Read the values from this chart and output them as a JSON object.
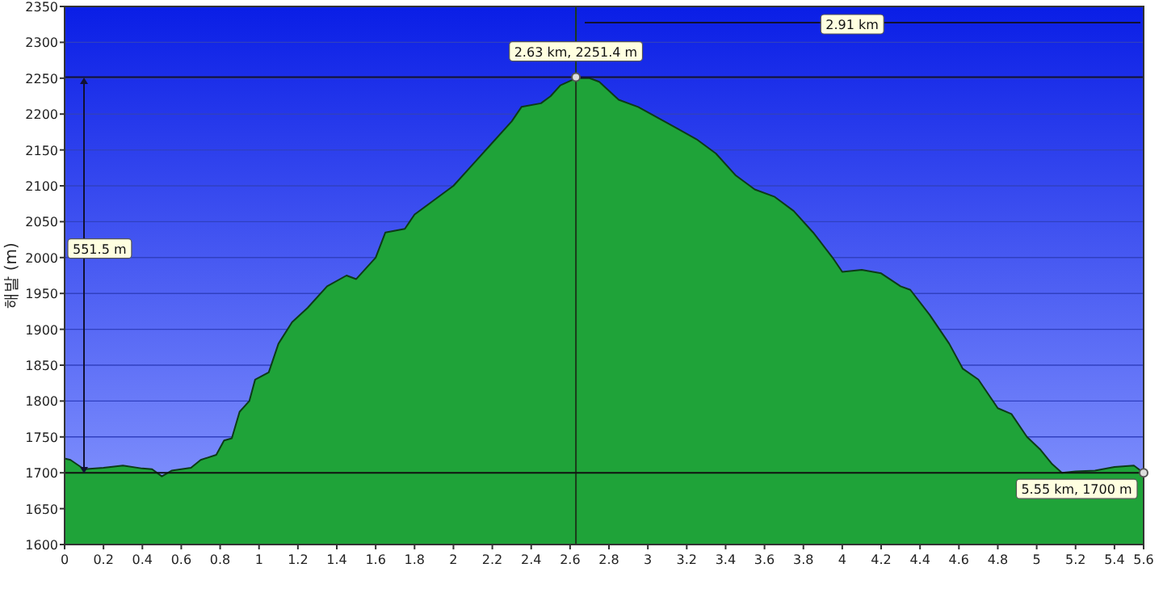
{
  "chart_data": {
    "type": "area",
    "ylabel": "해발 (m)",
    "x": [
      0.0,
      0.03,
      0.1,
      0.2,
      0.3,
      0.4,
      0.45,
      0.5,
      0.55,
      0.65,
      0.7,
      0.78,
      0.82,
      0.86,
      0.9,
      0.95,
      0.98,
      1.05,
      1.1,
      1.17,
      1.25,
      1.35,
      1.45,
      1.5,
      1.6,
      1.65,
      1.75,
      1.8,
      1.9,
      2.0,
      2.1,
      2.2,
      2.3,
      2.35,
      2.45,
      2.5,
      2.55,
      2.63,
      2.7,
      2.75,
      2.85,
      2.95,
      3.05,
      3.15,
      3.25,
      3.35,
      3.45,
      3.55,
      3.65,
      3.75,
      3.85,
      3.95,
      4.0,
      4.1,
      4.2,
      4.3,
      4.35,
      4.45,
      4.55,
      4.62,
      4.7,
      4.8,
      4.87,
      4.95,
      5.02,
      5.08,
      5.13,
      5.2,
      5.3,
      5.4,
      5.5,
      5.55
    ],
    "series": [
      {
        "color": "#1fa339",
        "values": [
          1720,
          1718,
          1705,
          1707,
          1710,
          1706,
          1705,
          1695,
          1703,
          1707,
          1718,
          1725,
          1745,
          1748,
          1785,
          1800,
          1830,
          1840,
          1880,
          1910,
          1930,
          1960,
          1975,
          1970,
          2000,
          2035,
          2040,
          2060,
          2080,
          2100,
          2130,
          2160,
          2190,
          2210,
          2215,
          2225,
          2240,
          2250,
          2250,
          2245,
          2220,
          2210,
          2195,
          2180,
          2165,
          2145,
          2115,
          2095,
          2085,
          2065,
          2035,
          2000,
          1980,
          1983,
          1978,
          1960,
          1955,
          1920,
          1880,
          1845,
          1830,
          1790,
          1782,
          1750,
          1732,
          1712,
          1700,
          1702,
          1703,
          1708,
          1710,
          1700
        ]
      }
    ],
    "xlim": [
      0,
      5.55
    ],
    "xticks": [
      0.0,
      0.2,
      0.4,
      0.6,
      0.8,
      1.0,
      1.2,
      1.4,
      1.6,
      1.8,
      2.0,
      2.2,
      2.4,
      2.6,
      2.8,
      3.0,
      3.2,
      3.4,
      3.6,
      3.8,
      4.0,
      4.2,
      4.4,
      4.6,
      4.8,
      5.0,
      5.2,
      5.4,
      {
        "value": 5.55,
        "label": "5.6"
      }
    ],
    "ylim": [
      1600,
      2350
    ],
    "yticks": [
      1600,
      1650,
      1700,
      1750,
      1800,
      1850,
      1900,
      1950,
      2000,
      2050,
      2100,
      2150,
      2200,
      2250,
      2300,
      2350
    ],
    "grid": "y",
    "ref_lines": [
      {
        "axis": "x",
        "value": 2.63,
        "color": "#1a3a1a"
      },
      {
        "axis": "y",
        "value": 2251.4,
        "color": "#111133"
      },
      {
        "axis": "y",
        "value": 1700,
        "color": "#111111"
      }
    ],
    "annotations": [
      {
        "text": "2.63 km, 2251.4 m",
        "x": 2.63,
        "y": 2251.4
      },
      {
        "text": "5.55 km, 1700 m",
        "x": 5.55,
        "y": 1700
      },
      "551.5 m",
      "2.91 km"
    ]
  }
}
